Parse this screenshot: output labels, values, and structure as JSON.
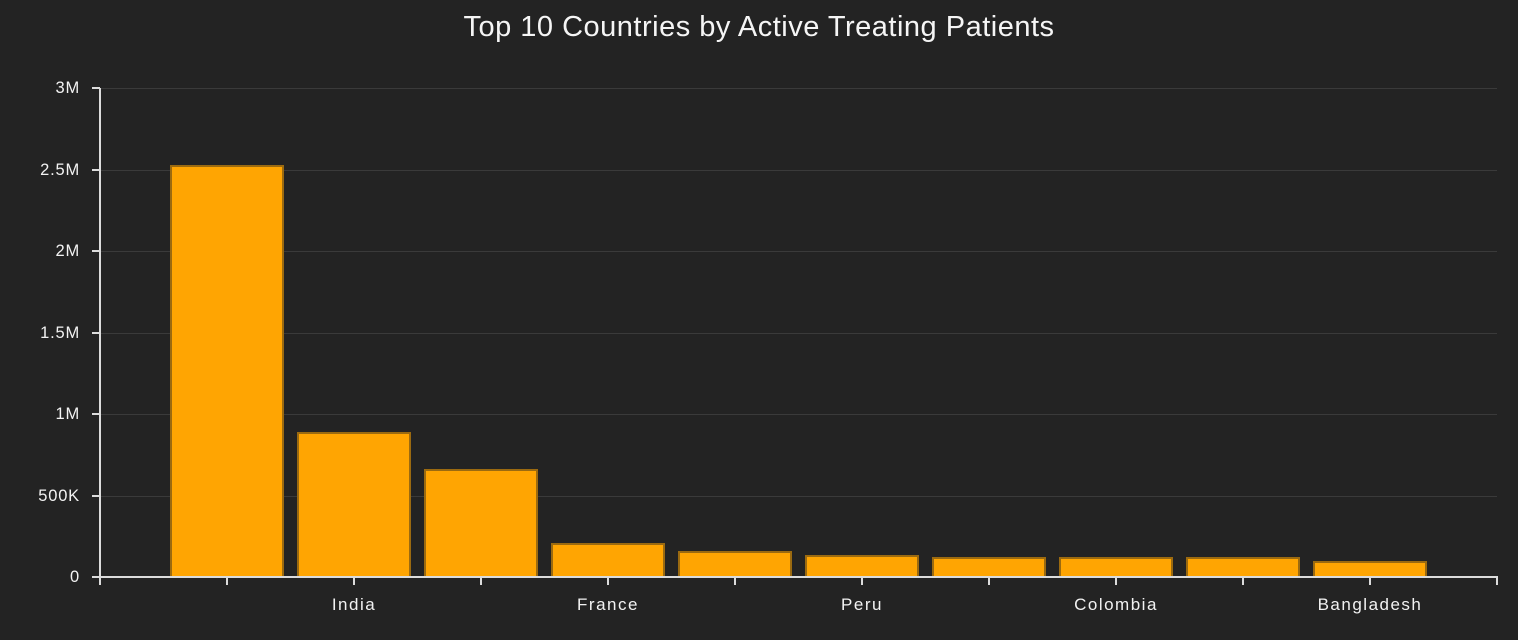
{
  "figure": {
    "background": "#232323",
    "text_color": "#f2f2f2",
    "title_color": "#f5f5f5"
  },
  "chart_data": {
    "type": "bar",
    "title": "Top 10 Countries by Active Treating Patients",
    "xlabel": "",
    "ylabel": "",
    "categories": [
      "",
      "India",
      "",
      "France",
      "",
      "Peru",
      "",
      "Colombia",
      "",
      "Bangladesh"
    ],
    "values": [
      2530000,
      890000,
      665000,
      210000,
      160000,
      135000,
      120000,
      120000,
      125000,
      100000
    ],
    "ylim": [
      0,
      3000000
    ],
    "y_ticks": [
      {
        "value": 0,
        "label": "0"
      },
      {
        "value": 500000,
        "label": "500K"
      },
      {
        "value": 1000000,
        "label": "1M"
      },
      {
        "value": 1500000,
        "label": "1.5M"
      },
      {
        "value": 2000000,
        "label": "2M"
      },
      {
        "value": 2500000,
        "label": "2.5M"
      },
      {
        "value": 3000000,
        "label": "3M"
      }
    ],
    "grid": "horizontal-only",
    "legend": "none",
    "bar_color": "#ffa502",
    "bar_edge_color": "#9b6a10",
    "grid_color": "#3a3a3a",
    "axis_color": "#dcdcdc"
  }
}
